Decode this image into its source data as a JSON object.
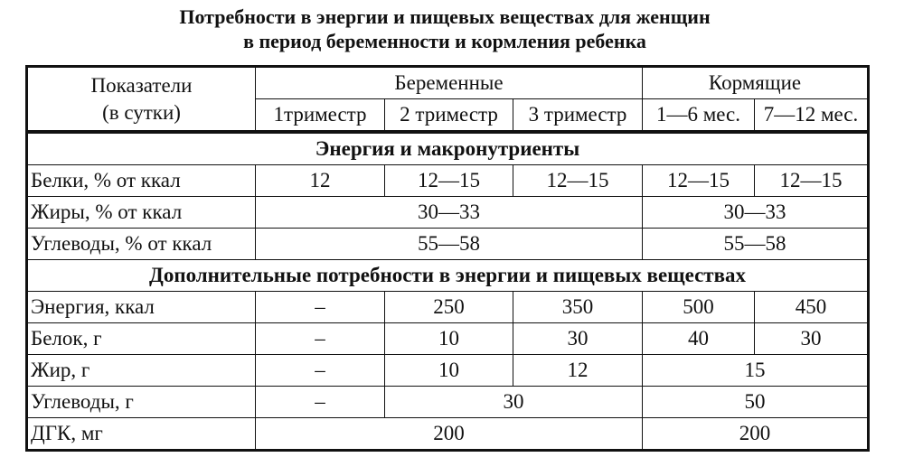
{
  "title": {
    "line1": "Потребности в энергии и пищевых веществах для женщин",
    "line2": "в период беременности и кормления ребенка"
  },
  "header": {
    "indicator_line1": "Показатели",
    "indicator_line2": "(в сутки)",
    "pregnant": "Беременные",
    "lactating": "Кормящие",
    "sub": [
      "1триместр",
      "2 триместр",
      "3 триместр",
      "1—6 мес.",
      "7—12 мес."
    ]
  },
  "section1": {
    "title": "Энергия и макронутриенты",
    "rows": [
      {
        "label": "Белки, % от ккал",
        "values": [
          "12",
          "12—15",
          "12—15",
          "12—15",
          "12—15"
        ]
      },
      {
        "label": "Жиры, % от ккал",
        "pregnant": "30—33",
        "lactating": "30—33"
      },
      {
        "label": "Углеводы, % от ккал",
        "pregnant": "55—58",
        "lactating": "55—58"
      }
    ]
  },
  "section2": {
    "title": "Дополнительные потребности в энергии и пищевых веществах",
    "rows": [
      {
        "label": "Энергия, ккал",
        "values": [
          "–",
          "250",
          "350",
          "500",
          "450"
        ]
      },
      {
        "label": "Белок, г",
        "values": [
          "–",
          "10",
          "30",
          "40",
          "30"
        ]
      },
      {
        "label": "Жир, г",
        "values": [
          "–",
          "10",
          "12",
          "15"
        ]
      },
      {
        "label": "Углеводы, г",
        "values": [
          "–",
          "30",
          "50"
        ]
      },
      {
        "label": "ДГК, мг",
        "values": [
          "200",
          "200"
        ]
      }
    ]
  }
}
